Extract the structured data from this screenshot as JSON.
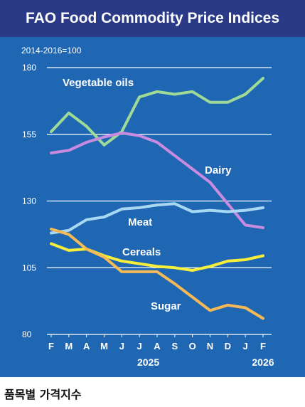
{
  "chart_data": {
    "type": "line",
    "title": "FAO Food Commodity Price Indices",
    "ylabel": "2014-2016=100",
    "ylim": [
      80,
      180
    ],
    "yticks": [
      80,
      105,
      130,
      155,
      180
    ],
    "grid": true,
    "categories": [
      "F",
      "M",
      "A",
      "M",
      "J",
      "J",
      "A",
      "S",
      "O",
      "N",
      "D",
      "J",
      "F"
    ],
    "year_labels": [
      {
        "label": "2025",
        "category_index": 5.5
      },
      {
        "label": "2026",
        "category_index": 12
      }
    ],
    "series": [
      {
        "name": "Vegetable oils",
        "color": "#9fdb96",
        "values": [
          156,
          163,
          158,
          151,
          156,
          169,
          171,
          170,
          171,
          167,
          167,
          170,
          176
        ]
      },
      {
        "name": "Dairy",
        "color": "#c98be0",
        "values": [
          148,
          149,
          152,
          154,
          155.5,
          154.5,
          152,
          147,
          142,
          137,
          129,
          121,
          120
        ]
      },
      {
        "name": "Meat",
        "color": "#a9d8f2",
        "values": [
          118,
          119,
          123,
          124,
          127,
          127.5,
          128.5,
          129,
          126,
          126.5,
          126,
          126.5,
          127.5
        ]
      },
      {
        "name": "Cereals",
        "color": "#f6ee3a",
        "values": [
          114,
          111.5,
          112,
          109.5,
          107.5,
          106.5,
          105.5,
          105,
          104,
          105.5,
          107.5,
          108,
          109.5
        ]
      },
      {
        "name": "Sugar",
        "color": "#f5b955",
        "values": [
          119.5,
          117.5,
          112,
          109,
          103.5,
          103.5,
          103.5,
          99,
          94,
          89,
          91,
          90,
          86
        ]
      }
    ]
  },
  "caption": "품목별 가격지수"
}
